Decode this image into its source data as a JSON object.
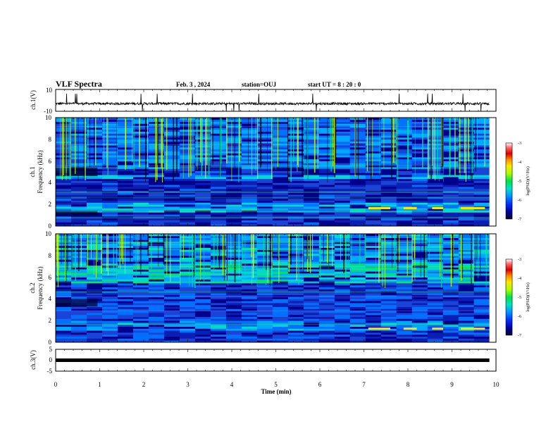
{
  "header": {
    "title": "VLF Spectra",
    "date": "Feb. 3 , 2024",
    "station": "station=OUJ",
    "start": "start UT = 8 : 20 : 0"
  },
  "colors": {
    "colormap": [
      "#ffffff",
      "#ff6a6a",
      "#d40000",
      "#ff8c00",
      "#ffe600",
      "#aaff00",
      "#00e04a",
      "#00e0c8",
      "#0090ff",
      "#0030ff",
      "#0000a0",
      "#000030"
    ],
    "spectrogram_base": "#0c1e8c",
    "waveform": "#000000"
  },
  "chart_data": [
    {
      "id": "ch1_waveform",
      "type": "line",
      "ylabel": "ch.1(V)",
      "ylim": [
        -10,
        10
      ],
      "yticks": [
        "10",
        "-10"
      ],
      "xlim": [
        0,
        10
      ],
      "description_series": "noise around -3 V with spikes"
    },
    {
      "id": "ch1_spectrogram",
      "type": "heatmap",
      "ylabel_line1": "ch.1",
      "ylabel_line2": "Frequency (kHz)",
      "ylim": [
        0,
        10
      ],
      "yticks": [
        "0",
        "2",
        "4",
        "6",
        "8",
        "10"
      ],
      "xlim": [
        0,
        10
      ],
      "colorbar": {
        "label": "log(PSD)(V²/Hz)",
        "range": [
          -7,
          -3
        ],
        "ticks": [
          "-3",
          "-4",
          "-5",
          "-6",
          "-7"
        ]
      }
    },
    {
      "id": "ch2_spectrogram",
      "type": "heatmap",
      "ylabel_line1": "ch.2",
      "ylabel_line2": "Frequency (kHz)",
      "ylim": [
        0,
        10
      ],
      "yticks": [
        "0",
        "2",
        "4",
        "6",
        "8",
        "10"
      ],
      "xlim": [
        0,
        10
      ],
      "colorbar": {
        "label": "log(PSD)(V²/Hz)",
        "range": [
          -7,
          -3
        ],
        "ticks": [
          "-3",
          "-4",
          "-5",
          "-6",
          "-7"
        ]
      }
    },
    {
      "id": "ch3_waveform",
      "type": "line",
      "ylabel": "ch.3(V)",
      "ylim": [
        -5,
        5
      ],
      "yticks": [
        "5",
        "0",
        "-5"
      ],
      "xlim": [
        0,
        10
      ],
      "xlabel": "Time (min)",
      "xticks": [
        "0",
        "1",
        "2",
        "3",
        "4",
        "5",
        "6",
        "7",
        "8",
        "9",
        "10"
      ],
      "level": -0.6
    }
  ]
}
